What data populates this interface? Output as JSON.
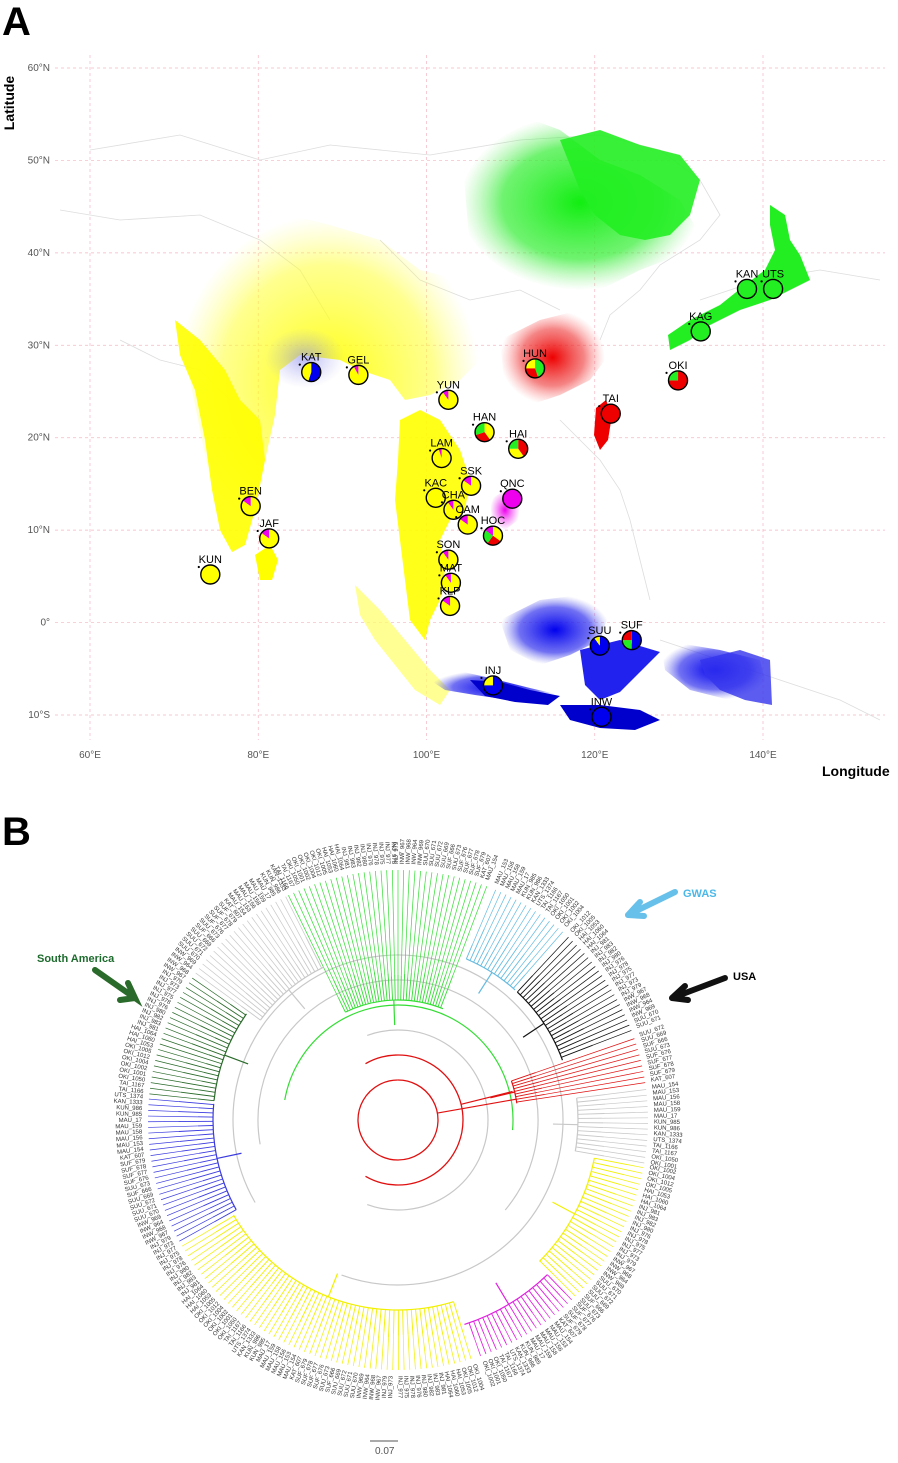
{
  "panel_a": {
    "letter": "A",
    "y_axis_label": "Latitude",
    "x_axis_label": "Longitude",
    "lat_ticks": [
      "60°N",
      "50°N",
      "40°N",
      "30°N",
      "20°N",
      "10°N",
      "0°",
      "10°S"
    ],
    "lon_ticks": [
      "60°E",
      "80°E",
      "100°E",
      "120°E",
      "140°E"
    ],
    "colors": {
      "yellow": "#ffff00",
      "green": "#22ee22",
      "red": "#ee0000",
      "blue": "#0000ee",
      "magenta": "#ee00ee",
      "grid": "#f4b6c2"
    },
    "sites": [
      {
        "code": "KAT",
        "lon": 86.3,
        "lat": 27.1,
        "pie": [
          [
            "blue",
            0.55
          ],
          [
            "yellow",
            0.45
          ]
        ]
      },
      {
        "code": "GEL",
        "lon": 91.9,
        "lat": 26.8,
        "pie": [
          [
            "yellow",
            0.92
          ],
          [
            "magenta",
            0.08
          ]
        ]
      },
      {
        "code": "HUN",
        "lon": 112.9,
        "lat": 27.5,
        "pie": [
          [
            "green",
            0.45
          ],
          [
            "red",
            0.3
          ],
          [
            "yellow",
            0.25
          ]
        ]
      },
      {
        "code": "KAN",
        "lon": 138.1,
        "lat": 36.1,
        "pie": [
          [
            "green",
            1.0
          ]
        ]
      },
      {
        "code": "UTS",
        "lon": 141.2,
        "lat": 36.1,
        "pie": [
          [
            "green",
            1.0
          ]
        ]
      },
      {
        "code": "KAG",
        "lon": 132.6,
        "lat": 31.5,
        "pie": [
          [
            "green",
            1.0
          ]
        ]
      },
      {
        "code": "OKI",
        "lon": 129.9,
        "lat": 26.2,
        "pie": [
          [
            "red",
            0.75
          ],
          [
            "green",
            0.25
          ]
        ]
      },
      {
        "code": "TAI",
        "lon": 121.9,
        "lat": 22.6,
        "pie": [
          [
            "red",
            1.0
          ]
        ]
      },
      {
        "code": "YUN",
        "lon": 102.6,
        "lat": 24.1,
        "pie": [
          [
            "yellow",
            0.9
          ],
          [
            "magenta",
            0.1
          ]
        ]
      },
      {
        "code": "HAN",
        "lon": 106.9,
        "lat": 20.6,
        "pie": [
          [
            "yellow",
            0.4
          ],
          [
            "red",
            0.3
          ],
          [
            "green",
            0.3
          ]
        ]
      },
      {
        "code": "HAI",
        "lon": 110.9,
        "lat": 18.8,
        "pie": [
          [
            "red",
            0.4
          ],
          [
            "yellow",
            0.35
          ],
          [
            "green",
            0.25
          ]
        ]
      },
      {
        "code": "LAM",
        "lon": 101.8,
        "lat": 17.8,
        "pie": [
          [
            "yellow",
            0.95
          ],
          [
            "magenta",
            0.05
          ]
        ]
      },
      {
        "code": "SSK",
        "lon": 105.3,
        "lat": 14.8,
        "pie": [
          [
            "yellow",
            0.85
          ],
          [
            "magenta",
            0.15
          ]
        ]
      },
      {
        "code": "QNC",
        "lon": 110.2,
        "lat": 13.4,
        "pie": [
          [
            "magenta",
            1.0
          ]
        ]
      },
      {
        "code": "KAC",
        "lon": 101.1,
        "lat": 13.5,
        "pie": [
          [
            "yellow",
            1.0
          ]
        ]
      },
      {
        "code": "CHA",
        "lon": 103.2,
        "lat": 12.2,
        "pie": [
          [
            "yellow",
            0.9
          ],
          [
            "magenta",
            0.1
          ]
        ]
      },
      {
        "code": "CAM",
        "lon": 104.9,
        "lat": 10.6,
        "pie": [
          [
            "yellow",
            0.85
          ],
          [
            "magenta",
            0.15
          ]
        ]
      },
      {
        "code": "HOC",
        "lon": 107.9,
        "lat": 9.4,
        "pie": [
          [
            "yellow",
            0.35
          ],
          [
            "red",
            0.25
          ],
          [
            "green",
            0.25
          ],
          [
            "magenta",
            0.15
          ]
        ]
      },
      {
        "code": "BEN",
        "lon": 79.1,
        "lat": 12.6,
        "pie": [
          [
            "yellow",
            0.85
          ],
          [
            "magenta",
            0.15
          ]
        ]
      },
      {
        "code": "JAF",
        "lon": 81.3,
        "lat": 9.1,
        "pie": [
          [
            "yellow",
            0.85
          ],
          [
            "magenta",
            0.15
          ]
        ]
      },
      {
        "code": "KUN",
        "lon": 74.3,
        "lat": 5.2,
        "pie": [
          [
            "yellow",
            1.0
          ]
        ]
      },
      {
        "code": "SON",
        "lon": 102.6,
        "lat": 6.8,
        "pie": [
          [
            "yellow",
            0.9
          ],
          [
            "magenta",
            0.1
          ]
        ]
      },
      {
        "code": "MAT",
        "lon": 102.9,
        "lat": 4.3,
        "pie": [
          [
            "yellow",
            0.9
          ],
          [
            "magenta",
            0.1
          ]
        ]
      },
      {
        "code": "KLP",
        "lon": 102.8,
        "lat": 1.8,
        "pie": [
          [
            "yellow",
            0.85
          ],
          [
            "magenta",
            0.15
          ]
        ]
      },
      {
        "code": "SUU",
        "lon": 120.6,
        "lat": -2.5,
        "pie": [
          [
            "blue",
            0.9
          ],
          [
            "yellow",
            0.1
          ]
        ]
      },
      {
        "code": "SUF",
        "lon": 124.4,
        "lat": -1.9,
        "pie": [
          [
            "blue",
            0.5
          ],
          [
            "green",
            0.25
          ],
          [
            "red",
            0.25
          ]
        ]
      },
      {
        "code": "INJ",
        "lon": 107.9,
        "lat": -6.8,
        "pie": [
          [
            "blue",
            0.75
          ],
          [
            "yellow",
            0.25
          ]
        ]
      },
      {
        "code": "INW",
        "lon": 120.8,
        "lat": -10.2,
        "pie": [
          [
            "blue",
            1.0
          ]
        ]
      }
    ]
  },
  "panel_b": {
    "letter": "B",
    "scale_label": "0.07",
    "annotations": {
      "south_america": "South America",
      "gwas": "GWAS",
      "usa": "USA"
    },
    "clade_colors": {
      "green": "#33dd33",
      "lightblue": "#66bbe0",
      "black": "#111111",
      "red": "#e01010",
      "grey": "#c8c8c8",
      "yellow": "#f2f000",
      "magenta": "#e020e0",
      "blue": "#3a3ae0",
      "darkgreen": "#2a6a2a"
    },
    "readable_leaf_labels": [
      "TAI_1166",
      "TAI_1167",
      "OKI_1050",
      "OKI_1001",
      "OKI_1002",
      "OKI_1004",
      "OKI_1012",
      "OKI_1005",
      "HAI_1053",
      "HAI_1060",
      "HAI_1064",
      "INJ_981",
      "INJ_983",
      "INJ_982",
      "INJ_980",
      "INJ_976",
      "INJ_978",
      "INJ_975",
      "INJ_977",
      "INJ_973",
      "INJ_979",
      "INW_967",
      "INW_968",
      "INW_964",
      "INW_969",
      "SUU_670",
      "SUU_671",
      "SUU_672",
      "SUU_669",
      "SUF_666",
      "SUU_673",
      "SUF_676",
      "SUF_677",
      "SUF_678",
      "SUF_679",
      "KAT_607",
      "MAU_154",
      "MAU_153",
      "MAU_156",
      "MAU_158",
      "MAU_159",
      "MAU_17",
      "KUN_985",
      "KUN_986",
      "KAN_1333",
      "UTS_1374"
    ]
  }
}
